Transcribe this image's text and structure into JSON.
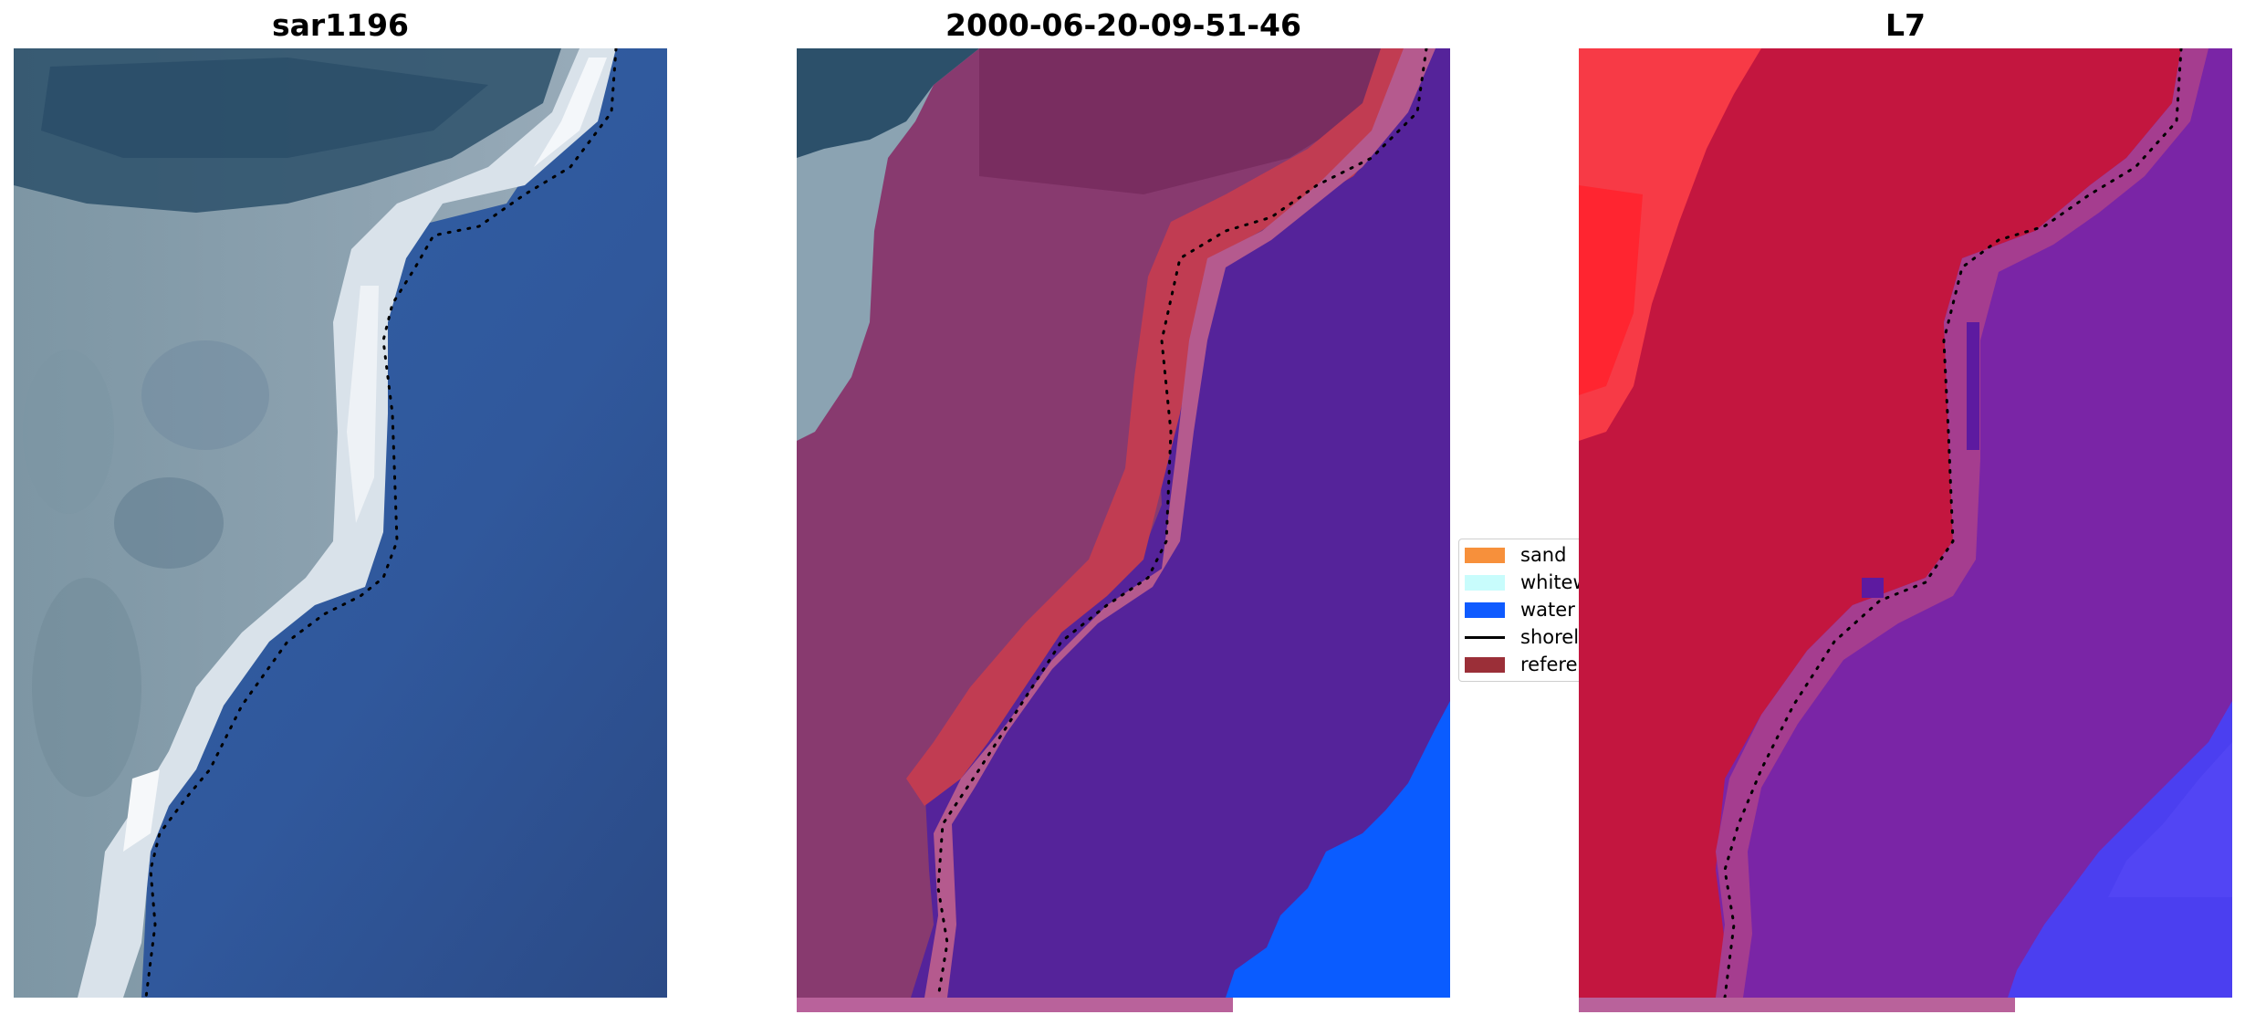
{
  "panels": [
    {
      "title": "sar1196"
    },
    {
      "title": "2000-06-20-09-51-46"
    },
    {
      "title": "L7"
    }
  ],
  "legend": {
    "items": [
      {
        "label": "sand",
        "color": "#f7903b",
        "kind": "patch"
      },
      {
        "label": "whitewater",
        "color": "#c8fcfc",
        "kind": "patch"
      },
      {
        "label": "water",
        "color": "#0f5bff",
        "kind": "patch"
      },
      {
        "label": "shoreline",
        "color": "#000000",
        "kind": "line"
      },
      {
        "label": "reference",
        "color": "#9b2f38",
        "kind": "patch"
      }
    ]
  },
  "progress": {
    "fraction": 0.667,
    "color": "#b9629b"
  }
}
